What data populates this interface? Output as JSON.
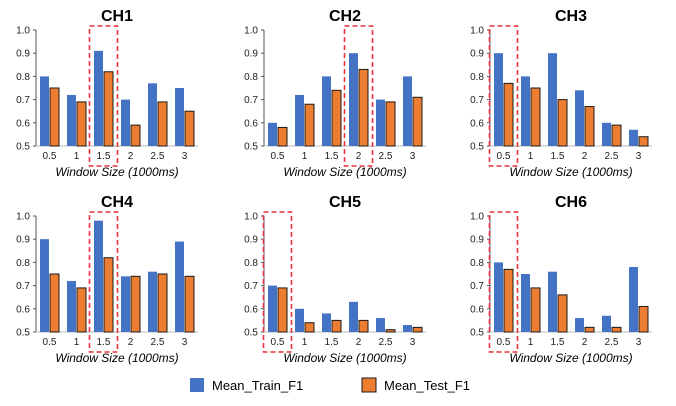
{
  "chart_data": [
    {
      "type": "bar",
      "title": "CH1",
      "xlabel": "Window Size (1000ms)",
      "ylabel": "",
      "ylim": [
        0.5,
        1.0
      ],
      "yticks": [
        "0.5",
        "0.6",
        "0.7",
        "0.8",
        "0.9",
        "1.0"
      ],
      "categories": [
        "0.5",
        "1",
        "1.5",
        "2",
        "2.5",
        "3"
      ],
      "highlight": "1.5",
      "series": [
        {
          "name": "Mean_Train_F1",
          "values": [
            0.8,
            0.72,
            0.91,
            0.7,
            0.77,
            0.75
          ]
        },
        {
          "name": "Mean_Test_F1",
          "values": [
            0.75,
            0.69,
            0.82,
            0.59,
            0.69,
            0.65
          ]
        }
      ]
    },
    {
      "type": "bar",
      "title": "CH2",
      "xlabel": "Window Size (1000ms)",
      "ylabel": "",
      "ylim": [
        0.5,
        1.0
      ],
      "yticks": [
        "0.5",
        "0.6",
        "0.7",
        "0.8",
        "0.9",
        "1.0"
      ],
      "categories": [
        "0.5",
        "1",
        "1.5",
        "2",
        "2.5",
        "3"
      ],
      "highlight": "2",
      "series": [
        {
          "name": "Mean_Train_F1",
          "values": [
            0.6,
            0.72,
            0.8,
            0.9,
            0.7,
            0.8
          ]
        },
        {
          "name": "Mean_Test_F1",
          "values": [
            0.58,
            0.68,
            0.74,
            0.83,
            0.69,
            0.71
          ]
        }
      ]
    },
    {
      "type": "bar",
      "title": "CH3",
      "xlabel": "Window Size (1000ms)",
      "ylabel": "",
      "ylim": [
        0.5,
        1.0
      ],
      "yticks": [
        "0.5",
        "0.6",
        "0.7",
        "0.8",
        "0.9",
        "1.0"
      ],
      "categories": [
        "0.5",
        "1",
        "1.5",
        "2",
        "2.5",
        "3"
      ],
      "highlight": "0.5",
      "series": [
        {
          "name": "Mean_Train_F1",
          "values": [
            0.9,
            0.8,
            0.9,
            0.74,
            0.6,
            0.57
          ]
        },
        {
          "name": "Mean_Test_F1",
          "values": [
            0.77,
            0.75,
            0.7,
            0.67,
            0.59,
            0.54
          ]
        }
      ]
    },
    {
      "type": "bar",
      "title": "CH4",
      "xlabel": "Window Size (1000ms)",
      "ylabel": "",
      "ylim": [
        0.5,
        1.0
      ],
      "yticks": [
        "0.5",
        "0.6",
        "0.7",
        "0.8",
        "0.9",
        "1.0"
      ],
      "categories": [
        "0.5",
        "1",
        "1.5",
        "2",
        "2.5",
        "3"
      ],
      "highlight": "1.5",
      "series": [
        {
          "name": "Mean_Train_F1",
          "values": [
            0.9,
            0.72,
            0.98,
            0.74,
            0.76,
            0.89
          ]
        },
        {
          "name": "Mean_Test_F1",
          "values": [
            0.75,
            0.69,
            0.82,
            0.74,
            0.75,
            0.74
          ]
        }
      ]
    },
    {
      "type": "bar",
      "title": "CH5",
      "xlabel": "Window Size (1000ms)",
      "ylabel": "",
      "ylim": [
        0.5,
        1.0
      ],
      "yticks": [
        "0.5",
        "0.6",
        "0.7",
        "0.8",
        "0.9",
        "1.0"
      ],
      "categories": [
        "0.5",
        "1",
        "1.5",
        "2",
        "2.5",
        "3"
      ],
      "highlight": "0.5",
      "series": [
        {
          "name": "Mean_Train_F1",
          "values": [
            0.7,
            0.6,
            0.58,
            0.63,
            0.56,
            0.53
          ]
        },
        {
          "name": "Mean_Test_F1",
          "values": [
            0.69,
            0.54,
            0.55,
            0.55,
            0.51,
            0.52
          ]
        }
      ]
    },
    {
      "type": "bar",
      "title": "CH6",
      "xlabel": "Window Size (1000ms)",
      "ylabel": "",
      "ylim": [
        0.5,
        1.0
      ],
      "yticks": [
        "0.5",
        "0.6",
        "0.7",
        "0.8",
        "0.9",
        "1.0"
      ],
      "categories": [
        "0.5",
        "1",
        "1.5",
        "2",
        "2.5",
        "3"
      ],
      "highlight": "0.5",
      "series": [
        {
          "name": "Mean_Train_F1",
          "values": [
            0.8,
            0.75,
            0.76,
            0.56,
            0.57,
            0.78
          ]
        },
        {
          "name": "Mean_Test_F1",
          "values": [
            0.77,
            0.69,
            0.66,
            0.52,
            0.52,
            0.61
          ]
        }
      ]
    }
  ],
  "legend": {
    "position": "bottom",
    "items": [
      {
        "label": "Mean_Train_F1",
        "color": "#4472C4"
      },
      {
        "label": "Mean_Test_F1",
        "color": "#ED7D31"
      }
    ]
  },
  "colors": {
    "train": "#4472C4",
    "test": "#ED7D31",
    "test_outline": "#1a1a1a",
    "highlight_box": "#E8343A",
    "axis": "#555555"
  }
}
